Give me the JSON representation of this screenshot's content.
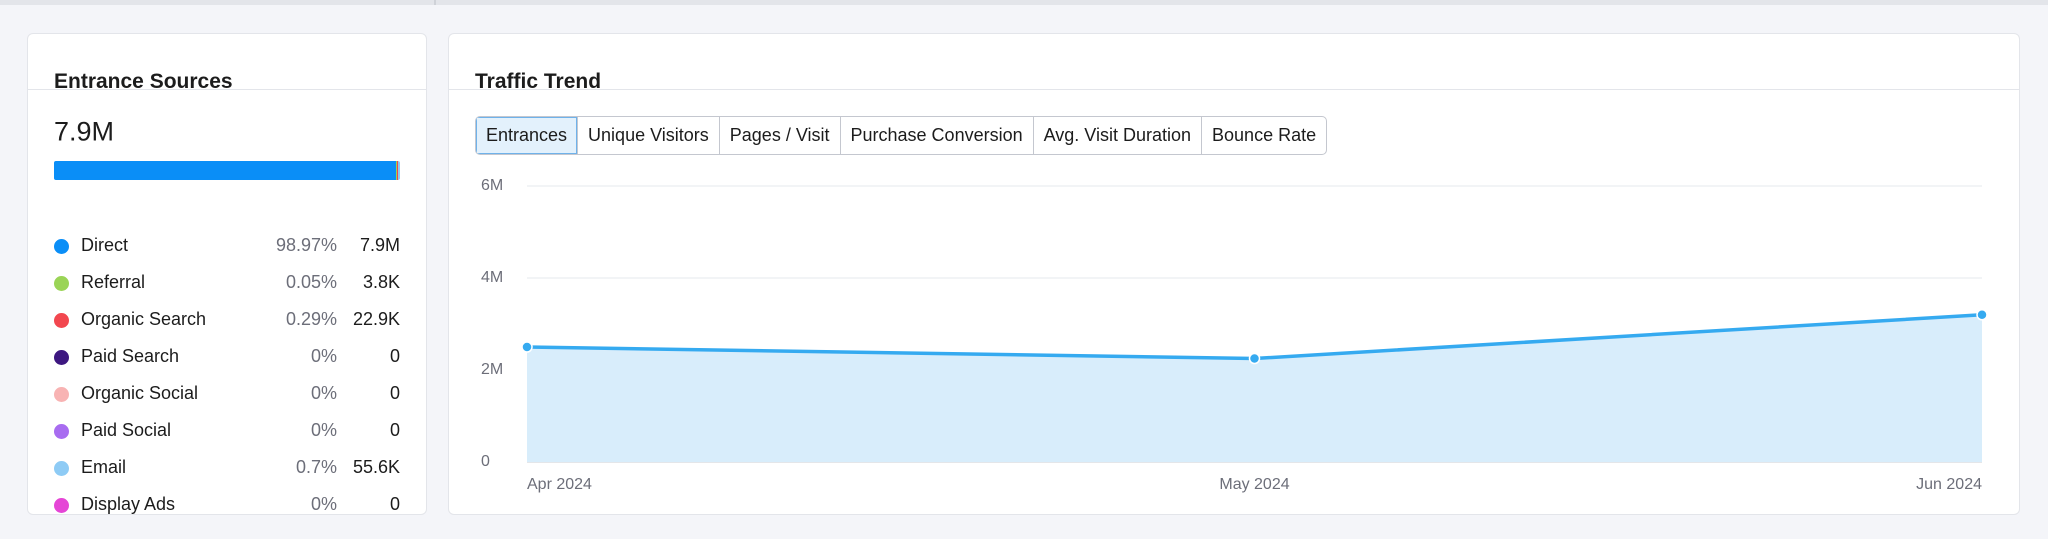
{
  "entrance_sources": {
    "title": "Entrance Sources",
    "total": "7.9M",
    "sources": [
      {
        "name": "Direct",
        "share": "98.97%",
        "value": "7.9M",
        "color": "#0a8ef7"
      },
      {
        "name": "Referral",
        "share": "0.05%",
        "value": "3.8K",
        "color": "#9ad456"
      },
      {
        "name": "Organic Search",
        "share": "0.29%",
        "value": "22.9K",
        "color": "#f2474f"
      },
      {
        "name": "Paid Search",
        "share": "0%",
        "value": "0",
        "color": "#3d1780"
      },
      {
        "name": "Organic Social",
        "share": "0%",
        "value": "0",
        "color": "#f8b3b3"
      },
      {
        "name": "Paid Social",
        "share": "0%",
        "value": "0",
        "color": "#a86cf0"
      },
      {
        "name": "Email",
        "share": "0.7%",
        "value": "55.6K",
        "color": "#8ecbf5"
      },
      {
        "name": "Display Ads",
        "share": "0%",
        "value": "0",
        "color": "#e545d6"
      }
    ]
  },
  "traffic_trend": {
    "title": "Traffic Trend",
    "tabs": [
      "Entrances",
      "Unique Visitors",
      "Pages / Visit",
      "Purchase Conversion",
      "Avg. Visit Duration",
      "Bounce Rate"
    ],
    "active_tab": 0
  },
  "chart_data": {
    "type": "area",
    "x": [
      "Apr 2024",
      "May 2024",
      "Jun 2024"
    ],
    "values": [
      2500000,
      2250000,
      3200000
    ],
    "color": "#35aaf0",
    "fill": "#d8edfb",
    "ylim": [
      0,
      6000000
    ],
    "yticks": [
      0,
      {
        "value": 2000000,
        "label": "2M"
      },
      {
        "value": 4000000,
        "label": "4M"
      },
      {
        "value": 6000000,
        "label": "6M"
      }
    ],
    "grid": true
  }
}
